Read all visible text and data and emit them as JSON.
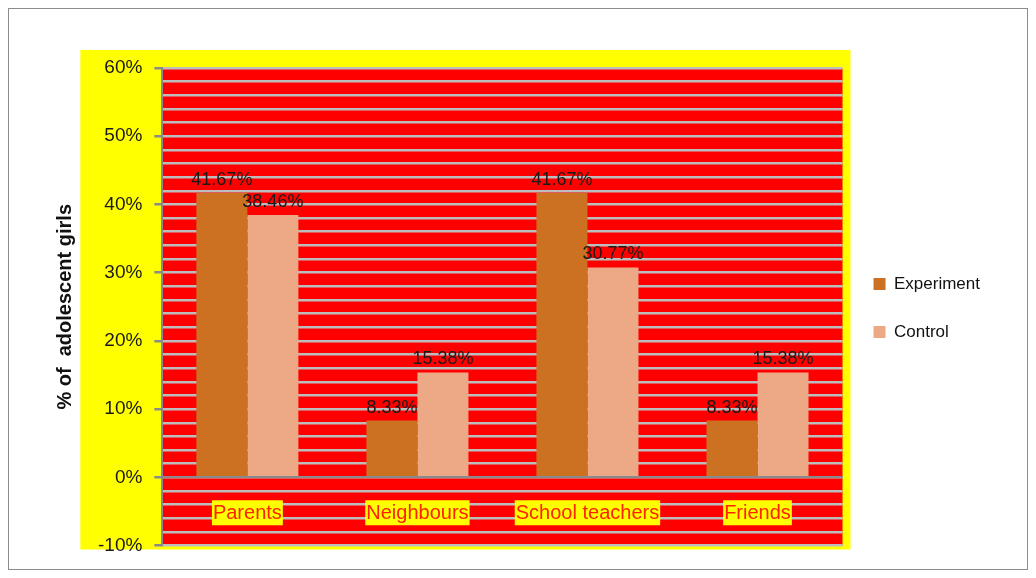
{
  "chart_data": {
    "type": "bar",
    "ylabel": "% of  adolescent girls",
    "categories": [
      "Parents",
      "Neighbours",
      "School teachers",
      "Friends"
    ],
    "series": [
      {
        "name": "Experiment",
        "color": "#cc7021",
        "values": [
          41.67,
          8.33,
          41.67,
          8.33
        ],
        "value_labels": [
          "41.67%",
          "8.33%",
          "41.67%",
          "8.33%"
        ]
      },
      {
        "name": "Control",
        "color": "#eda886",
        "values": [
          38.46,
          15.38,
          30.77,
          15.38
        ],
        "value_labels": [
          "38.46%",
          "15.38%",
          "30.77%",
          "15.38%"
        ]
      }
    ],
    "ylim": [
      -10,
      60
    ],
    "yticks": [
      {
        "value": -10,
        "label": "-10%"
      },
      {
        "value": -8,
        "label": null
      },
      {
        "value": -6,
        "label": null
      },
      {
        "value": -4,
        "label": null
      },
      {
        "value": -2,
        "label": null
      },
      {
        "value": 0,
        "label": "0%"
      },
      {
        "value": 2,
        "label": null
      },
      {
        "value": 4,
        "label": null
      },
      {
        "value": 6,
        "label": null
      },
      {
        "value": 8,
        "label": null
      },
      {
        "value": 10,
        "label": "10%"
      },
      {
        "value": 12,
        "label": null
      },
      {
        "value": 14,
        "label": null
      },
      {
        "value": 16,
        "label": null
      },
      {
        "value": 18,
        "label": null
      },
      {
        "value": 20,
        "label": "20%"
      },
      {
        "value": 22,
        "label": null
      },
      {
        "value": 24,
        "label": null
      },
      {
        "value": 26,
        "label": null
      },
      {
        "value": 28,
        "label": null
      },
      {
        "value": 30,
        "label": "30%"
      },
      {
        "value": 32,
        "label": null
      },
      {
        "value": 34,
        "label": null
      },
      {
        "value": 36,
        "label": null
      },
      {
        "value": 38,
        "label": null
      },
      {
        "value": 40,
        "label": "40%"
      },
      {
        "value": 42,
        "label": null
      },
      {
        "value": 44,
        "label": null
      },
      {
        "value": 46,
        "label": null
      },
      {
        "value": 48,
        "label": null
      },
      {
        "value": 50,
        "label": "50%"
      },
      {
        "value": 52,
        "label": null
      },
      {
        "value": 54,
        "label": null
      },
      {
        "value": 56,
        "label": null
      },
      {
        "value": 58,
        "label": null
      },
      {
        "value": 60,
        "label": "60%"
      }
    ],
    "grid": "y",
    "legend": "right"
  }
}
